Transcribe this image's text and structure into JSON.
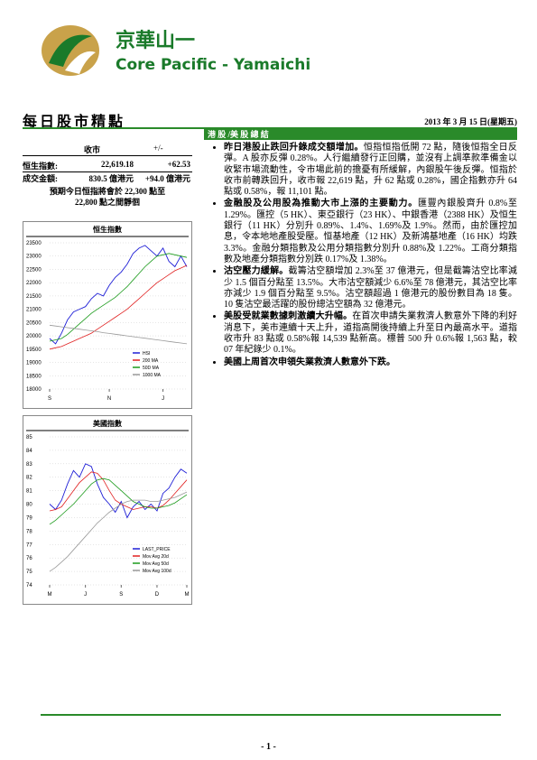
{
  "header": {
    "logo_cn": "京華山一",
    "logo_en": "Core Pacific - Yamaichi"
  },
  "title": "每日股市精點",
  "date": "2013 年 3 月 15 日(星期五)",
  "market": {
    "col_close": "收市",
    "col_change": "+/-",
    "rows": [
      [
        "恒生指數:",
        "22,619.18",
        "+62.53"
      ],
      [
        "成交金額:",
        "830.5 億港元",
        "+94.0 億港元"
      ]
    ],
    "forecast": [
      "預期今日恒指將會於 22,300 點至",
      "22,800 點之間靜徊"
    ]
  },
  "summary": {
    "heading": "港 股 /美 股 總 結",
    "bullets": [
      {
        "lead": "昨日港股止跌回升錄成交額增加。",
        "body": "恒指恒指低開 72 點，隨後恒指全日反彈。A 股亦反彈 0.28%。人行繼續發行正回購，並沒有上調準款準備金以收緊市場流動性，令市場此前的擔憂有所緩解，內銀股午後反彈。恒指於收市前轉跌回升，收市報 22,619 點，升 62 點或 0.28%，國企指數亦升 64 點或 0.58%，報 11,101 點。"
      },
      {
        "lead": "金融股及公用股為推動大市上漲的主要動力。",
        "body": "匯豐內銀股齊升 0.8%至 1.29%。匯控（5 HK）、東亞銀行（23 HK）、中銀香港（2388 HK）及恒生銀行（11 HK）分別升 0.89%、1.4%、1.69%及 1.9%。然而，由於匯控加息，令本地地產股受壓。恒基地產（12 HK）及新鴻基地產（16 HK）均跌 3.3%。金融分類指數及公用分類指數分別升 0.88%及 1.22%。工商分類指數及地產分類指數分別跌 0.17%及 1.38%。"
      },
      {
        "lead": "沽空壓力緩解。",
        "body": "截籌沽空額增加 2.3%至 37 億港元，但是截籌沽空比率減少 1.5 個百分點至 13.5%。大市沽空額減少 6.6%至 78 億港元，其沽空比率亦減少 1.9 個百分點至 9.5%。沽空額超過 1 億港元的股份數目為 18 隻。10 隻沽空最活躍的股份總沽空額為 32 億港元。"
      },
      {
        "lead": "美股受就業數據刺激續大升幅。",
        "body": "在首次申請失業救濟人數意外下降的利好消息下，美市連續十天上升，道指高開後持續上升至日內最高水平。道指收市升 83 點或 0.58%報 14,539 點新高。標普 500 升 0.6%報 1,563 點，較 07 年紀錄少 0.1%。"
      },
      {
        "lead": "美國上周首次申領失業救濟人數意外下跌。"
      }
    ]
  },
  "chart_data": [
    {
      "type": "line",
      "title": "恒生指數",
      "grid": true,
      "x": [
        0,
        1,
        2,
        3,
        4,
        5,
        6,
        7,
        8,
        9,
        10,
        11,
        12,
        13,
        14,
        15,
        16,
        17,
        18,
        19,
        20,
        21,
        22,
        23
      ],
      "xlim": [
        0,
        23
      ],
      "xticks": [
        {
          "value": 0,
          "label": "S"
        },
        {
          "value": 10,
          "label": "N"
        },
        {
          "value": 19,
          "label": "J"
        }
      ],
      "ylim": [
        18000,
        23500
      ],
      "yticks": [
        18000,
        18500,
        19000,
        19500,
        20000,
        20500,
        21000,
        21500,
        22000,
        22500,
        23000,
        23500
      ],
      "series": [
        {
          "name": "HSI",
          "color": "#1f1fd6",
          "values": [
            19900,
            19700,
            20100,
            20600,
            20900,
            21000,
            21100,
            21400,
            21600,
            21500,
            21900,
            22200,
            22400,
            22700,
            23100,
            23300,
            23400,
            23200,
            23000,
            23300,
            22800,
            22600,
            23000,
            22600
          ]
        },
        {
          "name": "200 MA",
          "color": "#e02020",
          "values": [
            19500,
            19550,
            19600,
            19700,
            19800,
            19900,
            20000,
            20100,
            20250,
            20400,
            20550,
            20700,
            20850,
            21000,
            21200,
            21400,
            21600,
            21800,
            22000,
            22150,
            22300,
            22450,
            22550,
            22650
          ]
        },
        {
          "name": "50D MA",
          "color": "#1a9a1a",
          "values": [
            19800,
            19850,
            19900,
            20050,
            20250,
            20450,
            20650,
            20850,
            21000,
            21150,
            21300,
            21450,
            21650,
            21850,
            22100,
            22350,
            22600,
            22800,
            23000,
            23050,
            23100,
            23050,
            23000,
            22950
          ]
        },
        {
          "name": "1000 MA",
          "color": "#999999",
          "values": [
            20400,
            20370,
            20340,
            20310,
            20280,
            20250,
            20220,
            20190,
            20160,
            20120,
            20090,
            20060,
            20030,
            20000,
            19970,
            19940,
            19910,
            19880,
            19850,
            19820,
            19790,
            19760,
            19730,
            19700
          ]
        }
      ]
    },
    {
      "type": "line",
      "title": "美國指數",
      "grid": true,
      "x": [
        0,
        1,
        2,
        3,
        4,
        5,
        6,
        7,
        8,
        9,
        10,
        11,
        12,
        13,
        14,
        15,
        16,
        17,
        18,
        19,
        20,
        21,
        22,
        23
      ],
      "xlim": [
        0,
        23
      ],
      "xticks": [
        {
          "value": 0,
          "label": "M"
        },
        {
          "value": 6,
          "label": "J"
        },
        {
          "value": 12,
          "label": "S"
        },
        {
          "value": 18,
          "label": "D"
        },
        {
          "value": 23,
          "label": "M"
        }
      ],
      "ylim": [
        74,
        85
      ],
      "yticks": [
        74,
        75,
        76,
        77,
        78,
        79,
        80,
        81,
        82,
        83,
        84,
        85
      ],
      "series": [
        {
          "name": "LAST_PRICE",
          "color": "#1f1fd6",
          "values": [
            80.0,
            79.6,
            80.3,
            81.5,
            82.5,
            82.0,
            83.0,
            82.8,
            81.5,
            80.5,
            80.0,
            79.4,
            80.2,
            79.0,
            79.8,
            80.2,
            79.6,
            80.0,
            79.5,
            80.8,
            81.2,
            82.0,
            82.6,
            82.3
          ]
        },
        {
          "name": "Mov Avg 20d",
          "color": "#e02020",
          "values": [
            79.5,
            79.6,
            79.8,
            80.4,
            81.0,
            81.6,
            82.0,
            82.4,
            82.3,
            81.8,
            81.0,
            80.3,
            80.0,
            79.8,
            79.6,
            79.7,
            79.8,
            79.8,
            79.7,
            79.9,
            80.3,
            80.8,
            81.3,
            81.8
          ]
        },
        {
          "name": "Mov Avg 50d",
          "color": "#1a9a1a",
          "values": [
            78.5,
            78.8,
            79.2,
            79.6,
            80.0,
            80.5,
            81.0,
            81.5,
            81.8,
            81.9,
            81.8,
            81.4,
            81.0,
            80.6,
            80.2,
            80.0,
            79.8,
            79.7,
            79.7,
            79.8,
            79.9,
            80.1,
            80.4,
            80.7
          ]
        },
        {
          "name": "Mov Avg 100d",
          "color": "#999999",
          "values": [
            75.0,
            75.3,
            75.7,
            76.1,
            76.6,
            77.1,
            77.6,
            78.1,
            78.6,
            79.0,
            79.4,
            79.7,
            80.0,
            80.2,
            80.3,
            80.3,
            80.3,
            80.2,
            80.2,
            80.3,
            80.4,
            80.5,
            80.7,
            80.9
          ]
        }
      ]
    }
  ]
}
